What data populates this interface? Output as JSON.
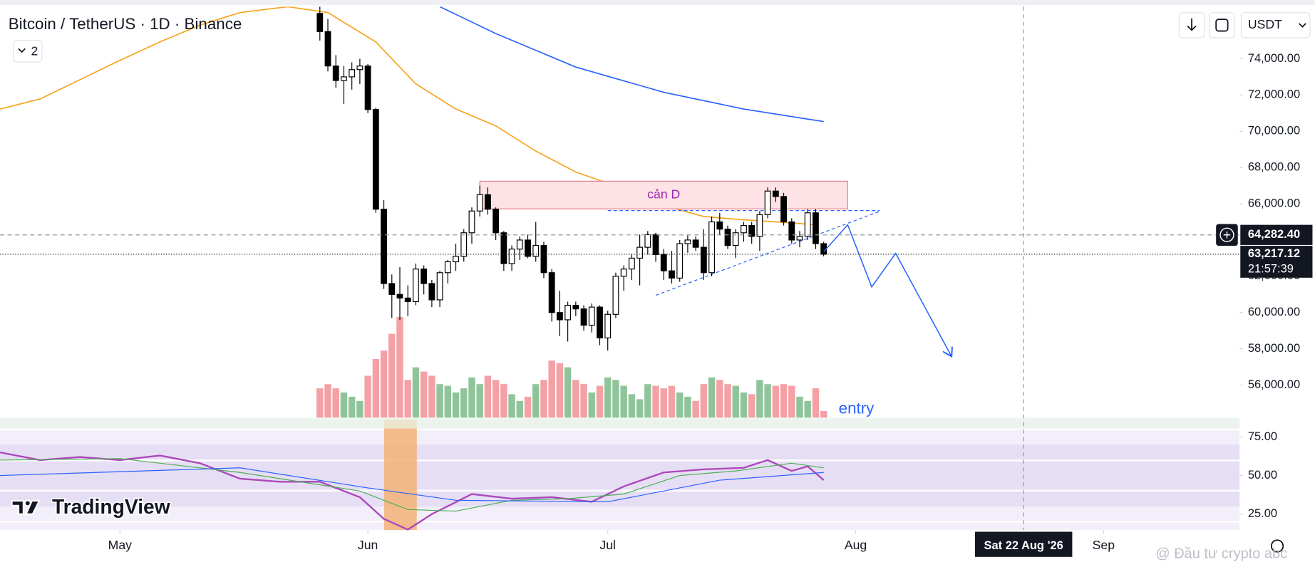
{
  "header": {
    "symbol_title": "Bitcoin / TetherUS · 1D · Binance",
    "collapse_count": 2,
    "currency": "USDT"
  },
  "branding": "TradingView",
  "watermark": "@ Đầu tư crypto abc",
  "chart_data": [
    {
      "type": "candlestick",
      "x": [
        "2026-05-26",
        "2026-05-27",
        "2026-05-28",
        "2026-05-29",
        "2026-05-30",
        "2026-05-31",
        "2026-06-01",
        "2026-06-02",
        "2026-06-03",
        "2026-06-04",
        "2026-06-05",
        "2026-06-06",
        "2026-06-07",
        "2026-06-08",
        "2026-06-09",
        "2026-06-10",
        "2026-06-11",
        "2026-06-12",
        "2026-06-13",
        "2026-06-14",
        "2026-06-15",
        "2026-06-16",
        "2026-06-17",
        "2026-06-18",
        "2026-06-19",
        "2026-06-20",
        "2026-06-21",
        "2026-06-22",
        "2026-06-23",
        "2026-06-24",
        "2026-06-25",
        "2026-06-26",
        "2026-06-27",
        "2026-06-28",
        "2026-06-29",
        "2026-06-30",
        "2026-07-01",
        "2026-07-02",
        "2026-07-03",
        "2026-07-04",
        "2026-07-05",
        "2026-07-06",
        "2026-07-07",
        "2026-07-08",
        "2026-07-09",
        "2026-07-10",
        "2026-07-11",
        "2026-07-12",
        "2026-07-13",
        "2026-07-14",
        "2026-07-15",
        "2026-07-16",
        "2026-07-17",
        "2026-07-18",
        "2026-07-19",
        "2026-07-20",
        "2026-07-21",
        "2026-07-22",
        "2026-07-23",
        "2026-07-24",
        "2026-07-25",
        "2026-07-26",
        "2026-07-27",
        "2026-07-28"
      ],
      "open": [
        76500,
        75500,
        73600,
        72800,
        73000,
        73400,
        73600,
        71200,
        65700,
        61600,
        61000,
        60800,
        60600,
        62400,
        61600,
        60700,
        62200,
        62800,
        63100,
        64400,
        65600,
        66500,
        65700,
        64400,
        62700,
        63500,
        64000,
        63100,
        63700,
        62200,
        60000,
        59600,
        60400,
        60200,
        59300,
        60300,
        58600,
        59900,
        62000,
        62400,
        63000,
        63600,
        64300,
        63200,
        62300,
        61900,
        63800,
        64000,
        63600,
        62200,
        65000,
        64600,
        63700,
        64400,
        64800,
        64200,
        65400,
        66700,
        66400,
        65000,
        64000,
        64200,
        65500,
        63800
      ],
      "high": [
        77000,
        76200,
        74200,
        73600,
        73800,
        74000,
        73700,
        71300,
        66200,
        62100,
        62500,
        61500,
        62700,
        62600,
        61800,
        62300,
        62900,
        63800,
        64600,
        65800,
        67000,
        66900,
        65800,
        64500,
        63700,
        64200,
        64300,
        65000,
        63900,
        62400,
        61200,
        60600,
        60600,
        60400,
        60500,
        60400,
        60100,
        62200,
        62600,
        63200,
        64300,
        64500,
        64400,
        63500,
        63400,
        64000,
        64300,
        64200,
        64600,
        65300,
        65500,
        64800,
        64600,
        65000,
        65000,
        65600,
        66900,
        66900,
        66600,
        65200,
        64500,
        65700,
        65700,
        63900
      ],
      "low": [
        75000,
        73300,
        72400,
        71500,
        72300,
        72600,
        71000,
        65500,
        61300,
        59700,
        59600,
        59800,
        60400,
        61000,
        60300,
        60300,
        61600,
        62300,
        62800,
        63800,
        65300,
        65400,
        64000,
        62300,
        62300,
        62900,
        63000,
        62800,
        61900,
        59500,
        58700,
        58400,
        59800,
        59000,
        58900,
        58200,
        57900,
        59700,
        61200,
        61800,
        61500,
        63200,
        62800,
        61800,
        61600,
        61700,
        63300,
        63400,
        61800,
        62000,
        64300,
        63500,
        63000,
        63900,
        63800,
        63400,
        65200,
        66100,
        64800,
        63800,
        63600,
        64000,
        63500,
        63100
      ],
      "close": [
        75500,
        73600,
        72800,
        73000,
        73400,
        73600,
        71200,
        65700,
        61600,
        61000,
        60800,
        60600,
        62400,
        61600,
        60700,
        62200,
        62800,
        63100,
        64400,
        65600,
        66500,
        65700,
        64400,
        62700,
        63500,
        64000,
        63100,
        63700,
        62200,
        60000,
        59600,
        60400,
        60200,
        59300,
        60300,
        58600,
        59900,
        62000,
        62400,
        63000,
        63600,
        64300,
        63200,
        62300,
        61900,
        63800,
        64000,
        63600,
        62200,
        65000,
        64600,
        63700,
        64400,
        64800,
        64200,
        65400,
        66700,
        66400,
        65000,
        64000,
        64200,
        65500,
        63800,
        63217.12
      ],
      "volume": [
        35,
        40,
        35,
        30,
        25,
        20,
        50,
        70,
        80,
        100,
        120,
        45,
        60,
        55,
        50,
        40,
        38,
        30,
        35,
        48,
        40,
        50,
        45,
        40,
        28,
        20,
        25,
        40,
        45,
        68,
        65,
        60,
        45,
        40,
        30,
        38,
        48,
        45,
        38,
        28,
        22,
        40,
        38,
        35,
        38,
        30,
        25,
        20,
        40,
        48,
        45,
        40,
        38,
        30,
        28,
        45,
        40,
        38,
        40,
        38,
        25,
        20,
        35,
        8
      ],
      "colors": {
        "up": "#ffffff",
        "down": "#000000",
        "volume_up": "#8fc49a",
        "volume_down": "#f4a0a5"
      },
      "moving_averages": [
        {
          "color": "#f7a21b",
          "x": [
            "2026-04-16",
            "2026-04-21",
            "2026-04-26",
            "2026-05-01",
            "2026-05-06",
            "2026-05-11",
            "2026-05-16",
            "2026-05-22",
            "2026-05-27",
            "2026-06-02",
            "2026-06-07",
            "2026-06-12",
            "2026-06-17",
            "2026-06-22",
            "2026-06-27",
            "2026-07-03",
            "2026-07-08",
            "2026-07-13",
            "2026-07-18",
            "2026-07-23",
            "2026-07-27"
          ],
          "values": [
            71224,
            71779,
            72843,
            73907,
            74925,
            75850,
            76545,
            76869,
            76545,
            74925,
            72612,
            71224,
            70298,
            68910,
            67753,
            66828,
            65902,
            65301,
            65116,
            64977,
            64838
          ]
        },
        {
          "color": "#2962ff",
          "x": [
            "2026-06-10",
            "2026-06-17",
            "2026-06-27",
            "2026-07-08",
            "2026-07-18",
            "2026-07-28"
          ],
          "values": [
            76869,
            75388,
            73537,
            72149,
            71224,
            70530
          ]
        }
      ],
      "xlim": [
        "2026-04-16",
        "2026-09-18"
      ],
      "xticks": [
        {
          "value": "2026-05-01",
          "label": "May"
        },
        {
          "value": "2026-06-01",
          "label": "Jun"
        },
        {
          "value": "2026-07-01",
          "label": "Jul"
        },
        {
          "value": "2026-08-01",
          "label": "Aug"
        },
        {
          "value": "2026-09-01",
          "label": "Sep"
        }
      ],
      "ylim": [
        54200,
        76870
      ],
      "yticks": [
        {
          "value": 56000,
          "label": "56,000.00"
        },
        {
          "value": 58000,
          "label": "58,000.00"
        },
        {
          "value": 60000,
          "label": "60,000.00"
        },
        {
          "value": 62000,
          "label": "62,000.00"
        },
        {
          "value": 64000,
          "label": "64,000.00"
        },
        {
          "value": 66000,
          "label": "66,000.00"
        },
        {
          "value": 68000,
          "label": "68,000.00"
        },
        {
          "value": 70000,
          "label": "70,000.00"
        },
        {
          "value": 72000,
          "label": "72,000.00"
        },
        {
          "value": 74000,
          "label": "74,000.00"
        }
      ],
      "last_price": {
        "value": 63217.12,
        "label": "63,217.12",
        "countdown": "21:57:39"
      },
      "crosshair": {
        "price": 64282.4,
        "price_label": "64,282.40",
        "date": "2026-08-22",
        "date_label": "Sat 22 Aug '26"
      },
      "annotations": {
        "resistance_label": "cản D",
        "resistance_zone": {
          "x": [
            "2026-06-15",
            "2026-07-31"
          ],
          "values": [
            65718,
            67245
          ]
        },
        "triangle_upper": {
          "x": [
            "2026-07-01",
            "2026-08-04"
          ],
          "values": [
            65625,
            65625
          ]
        },
        "triangle_lower": {
          "x": [
            "2026-07-07",
            "2026-08-04"
          ],
          "values": [
            60952,
            65579
          ]
        },
        "projection": {
          "x": [
            "2026-07-28",
            "2026-07-31",
            "2026-08-03",
            "2026-08-06",
            "2026-08-13"
          ],
          "values": [
            63358,
            64838,
            61414,
            63265,
            57574
          ]
        },
        "entry_label": "entry"
      }
    },
    {
      "type": "line",
      "series": [
        {
          "color": "#ab47bc",
          "x": [
            "2026-04-16",
            "2026-04-21",
            "2026-04-26",
            "2026-05-01",
            "2026-05-06",
            "2026-05-11",
            "2026-05-16",
            "2026-05-21",
            "2026-05-26",
            "2026-05-31",
            "2026-06-03",
            "2026-06-06",
            "2026-06-09",
            "2026-06-14",
            "2026-06-19",
            "2026-06-24",
            "2026-06-29",
            "2026-07-03",
            "2026-07-08",
            "2026-07-13",
            "2026-07-18",
            "2026-07-21",
            "2026-07-24",
            "2026-07-26",
            "2026-07-28"
          ],
          "values": [
            65,
            60,
            62,
            60,
            63,
            58,
            48,
            46,
            46,
            36,
            22,
            15,
            25,
            38,
            35,
            36,
            33,
            43,
            52,
            54,
            55,
            60,
            53,
            56,
            47
          ]
        },
        {
          "color": "#4caf50",
          "x": [
            "2026-04-16",
            "2026-05-01",
            "2026-05-16",
            "2026-05-31",
            "2026-06-06",
            "2026-06-12",
            "2026-06-19",
            "2026-06-26",
            "2026-07-03",
            "2026-07-10",
            "2026-07-17",
            "2026-07-24",
            "2026-07-28"
          ],
          "values": [
            60,
            61,
            52,
            40,
            28,
            27,
            34,
            35,
            38,
            50,
            53,
            58,
            55
          ]
        },
        {
          "color": "#2962ff",
          "x": [
            "2026-04-16",
            "2026-05-16",
            "2026-06-01",
            "2026-06-12",
            "2026-07-01",
            "2026-07-15",
            "2026-07-28"
          ],
          "values": [
            50,
            55,
            42,
            34,
            33,
            47,
            52
          ]
        }
      ],
      "ylim": [
        14.7,
        86.4
      ],
      "yticks": [
        {
          "value": 25,
          "label": "25.00"
        },
        {
          "value": 50,
          "label": "50.00"
        },
        {
          "value": 75,
          "label": "75.00"
        }
      ]
    }
  ]
}
